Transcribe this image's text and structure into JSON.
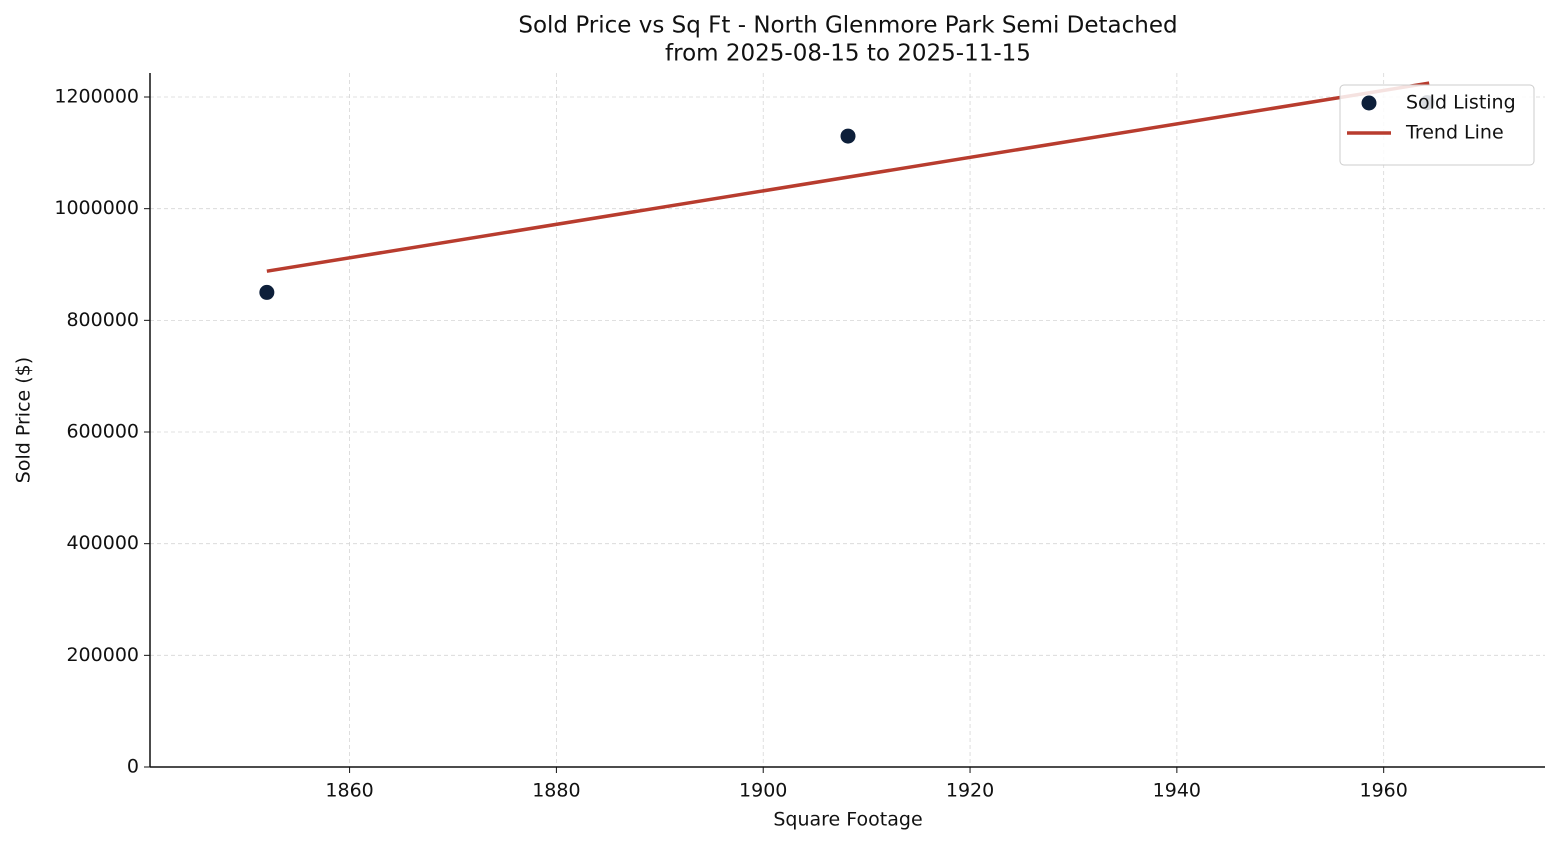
{
  "chart_data": {
    "type": "scatter",
    "title": "Sold Price vs Sq Ft - North Glenmore Park Semi Detached",
    "subtitle": "from 2025-08-15 to 2025-11-15",
    "x_label": "Square Footage",
    "y_label": "Sold Price ($)",
    "series": [
      {
        "name": "Sold Listing",
        "type": "scatter",
        "color": "#0d1f3a",
        "x": [
          1852,
          1908.2,
          1964.2
        ],
        "values": [
          850000,
          1130000,
          1190000
        ]
      },
      {
        "name": "Trend Line",
        "type": "line",
        "color": "#b83c2e",
        "x": [
          1852,
          1964.4
        ],
        "values": [
          888000,
          1225000
        ]
      }
    ],
    "xlim": [
      1840.7,
      1975.6
    ],
    "xticks": [
      1860,
      1880,
      1900,
      1920,
      1940,
      1960
    ],
    "ylim": [
      0,
      1243000
    ],
    "yticks": [
      0,
      200000,
      400000,
      600000,
      800000,
      1000000,
      1200000
    ],
    "grid": true,
    "legend": "upper right"
  }
}
